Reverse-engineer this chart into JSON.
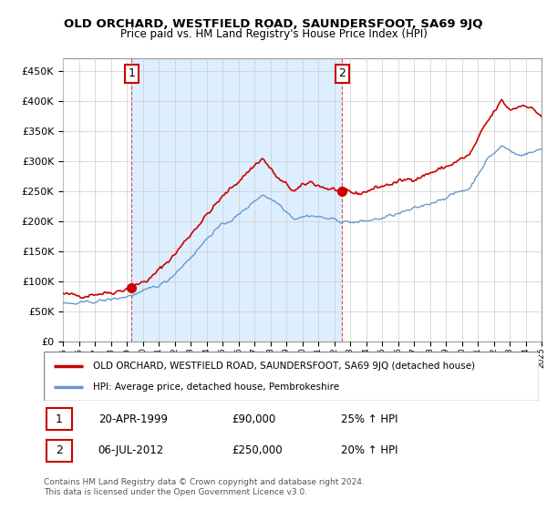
{
  "title": "OLD ORCHARD, WESTFIELD ROAD, SAUNDERSFOOT, SA69 9JQ",
  "subtitle": "Price paid vs. HM Land Registry's House Price Index (HPI)",
  "ylim": [
    0,
    470000
  ],
  "yticks": [
    0,
    50000,
    100000,
    150000,
    200000,
    250000,
    300000,
    350000,
    400000,
    450000
  ],
  "start_year": 1995,
  "end_year": 2025,
  "red_color": "#cc0000",
  "blue_color": "#6699cc",
  "shade_color": "#ddeeff",
  "grid_color": "#cccccc",
  "legend_red_label": "OLD ORCHARD, WESTFIELD ROAD, SAUNDERSFOOT, SA69 9JQ (detached house)",
  "legend_blue_label": "HPI: Average price, detached house, Pembrokeshire",
  "annotation1_date": "20-APR-1999",
  "annotation1_price": "£90,000",
  "annotation1_hpi": "25% ↑ HPI",
  "annotation2_date": "06-JUL-2012",
  "annotation2_price": "£250,000",
  "annotation2_hpi": "20% ↑ HPI",
  "footer": "Contains HM Land Registry data © Crown copyright and database right 2024.\nThis data is licensed under the Open Government Licence v3.0.",
  "sale1_year": 1999.3,
  "sale1_price": 90000,
  "sale2_year": 2012.5,
  "sale2_price": 250000
}
